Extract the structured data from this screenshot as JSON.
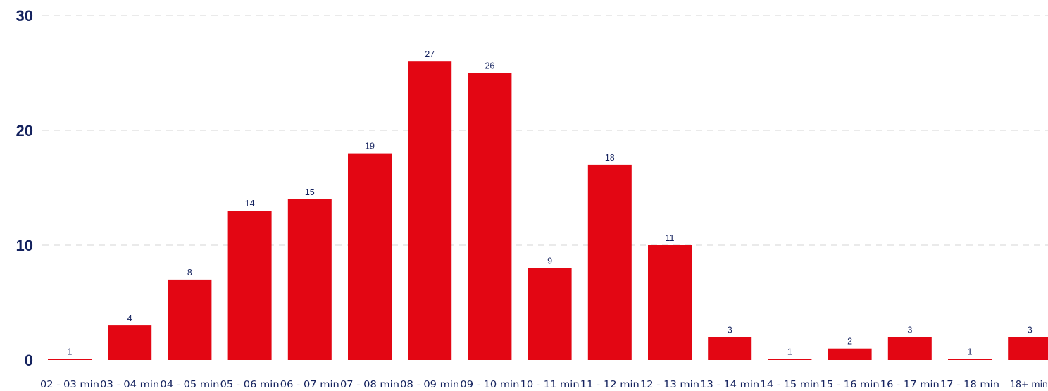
{
  "colors": {
    "bar": "#e30613",
    "text": "#14225e",
    "grid": "#d5d5d5"
  },
  "chart_data": {
    "type": "bar",
    "title": "",
    "xlabel": "",
    "ylabel": "",
    "categories": [
      "02 - 03 min",
      "03 - 04 min",
      "04 - 05 min",
      "05 - 06 min",
      "06 - 07 min",
      "07 - 08 min",
      "08 - 09 min",
      "09 - 10 min",
      "10 - 11 min",
      "11 - 12 min",
      "12 - 13 min",
      "13 - 14 min",
      "14 - 15 min",
      "15 - 16 min",
      "16 - 17 min",
      "17 - 18 min",
      "18+ min"
    ],
    "values": [
      1,
      4,
      8,
      14,
      15,
      19,
      27,
      26,
      9,
      18,
      11,
      3,
      1,
      2,
      3,
      1,
      3
    ],
    "bar_heights": [
      0.1,
      3,
      7,
      13,
      14,
      18,
      26,
      25,
      8,
      17,
      10,
      2,
      0.1,
      1,
      2,
      0.1,
      2
    ],
    "data_labels": [
      "1",
      "4",
      "8",
      "14",
      "15",
      "19",
      "27",
      "26",
      "9",
      "18",
      "11",
      "3",
      "1",
      "2",
      "3",
      "1",
      "3"
    ],
    "yticks": [
      0,
      10,
      20,
      30
    ],
    "ytick_labels": [
      "0",
      "10",
      "20",
      "30"
    ],
    "ylim": [
      0,
      30
    ],
    "grid": true,
    "legend": "none"
  }
}
